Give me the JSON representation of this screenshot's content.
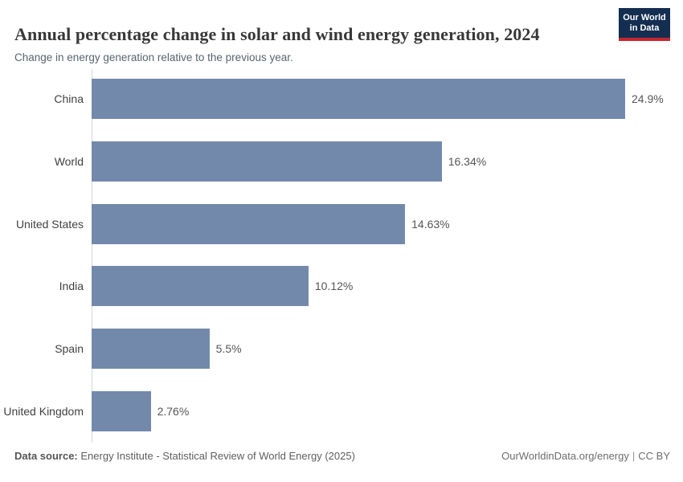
{
  "header": {
    "title": "Annual percentage change in solar and wind energy generation, 2024",
    "subtitle": "Change in energy generation relative to the previous year.",
    "logo_line1": "Our World",
    "logo_line2": "in Data"
  },
  "chart_data": {
    "type": "bar",
    "orientation": "horizontal",
    "title": "Annual percentage change in solar and wind energy generation, 2024",
    "subtitle": "Change in energy generation relative to the previous year.",
    "categories": [
      "China",
      "World",
      "United States",
      "India",
      "Spain",
      "United Kingdom"
    ],
    "values": [
      24.9,
      16.34,
      14.63,
      10.12,
      5.5,
      2.76
    ],
    "value_labels": [
      "24.9%",
      "16.34%",
      "14.63%",
      "10.12%",
      "5.5%",
      "2.76%"
    ],
    "xlabel": "",
    "ylabel": "",
    "xlim": [
      0,
      24.9
    ],
    "grid": false,
    "legend": false,
    "bar_color": "#7389ac",
    "axis_line_color": "#d6d6d6"
  },
  "footer": {
    "source_label": "Data source:",
    "source_text": "Energy Institute - Statistical Review of World Energy (2025)",
    "link": "OurWorldinData.org/energy",
    "separator": "|",
    "license": "CC BY"
  },
  "colors": {
    "bar": "#7389ac",
    "logo_bg": "#142e51",
    "logo_stripe": "#c2282e",
    "title_text": "#383838",
    "subtitle_text": "#586470"
  }
}
